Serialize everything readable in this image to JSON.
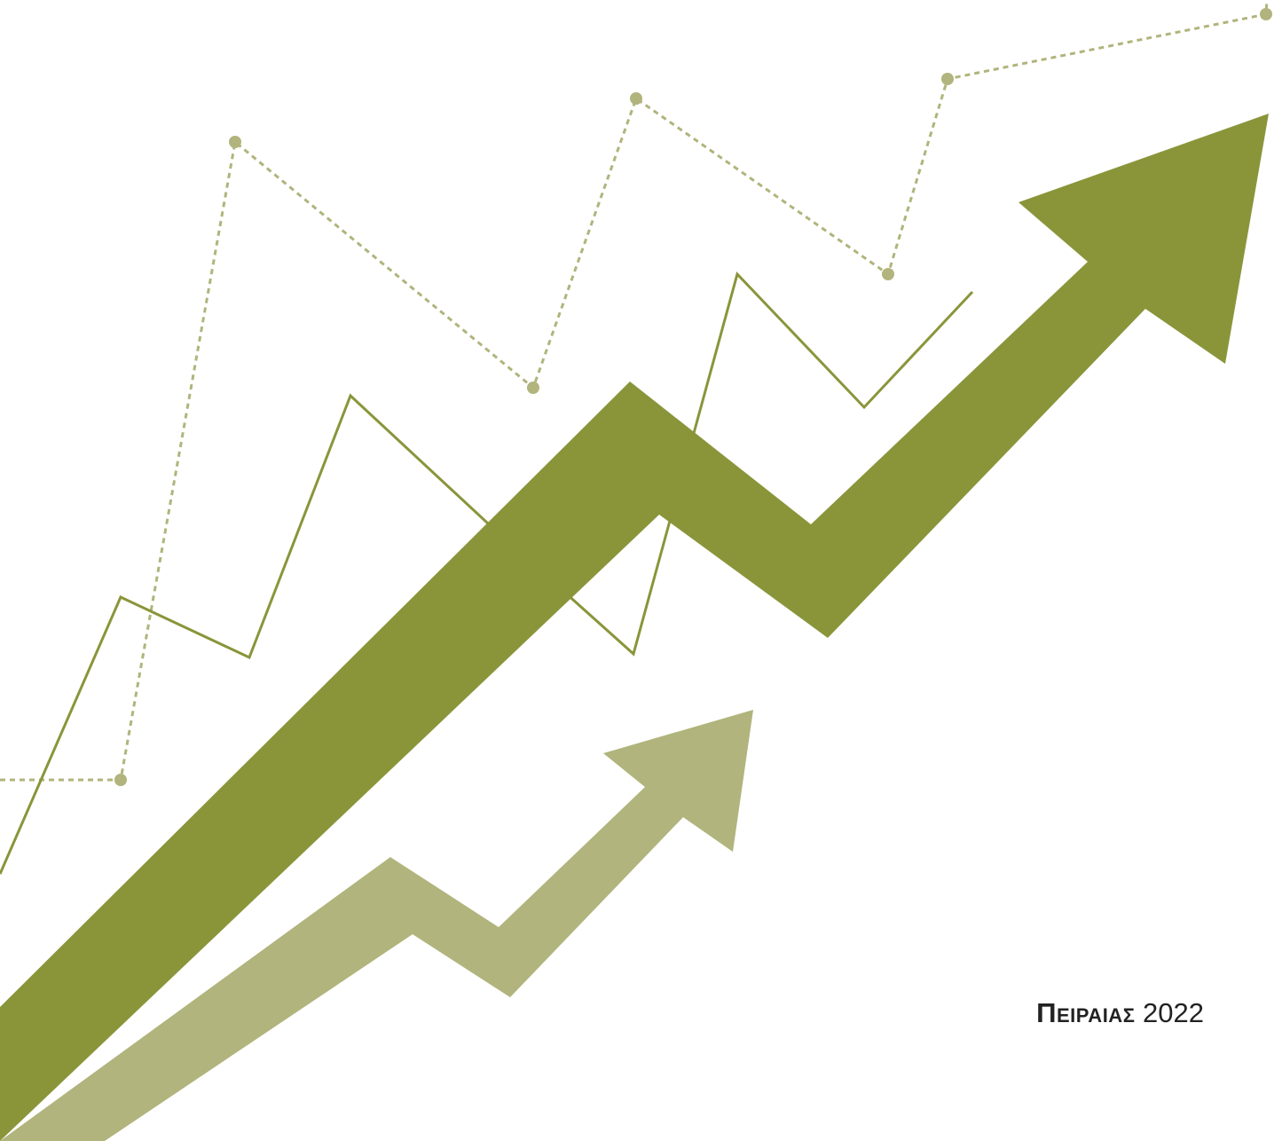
{
  "colors": {
    "background": "#ffffff",
    "primary_green": "#8a953a",
    "light_green": "#b1b47c",
    "dotted_line": "#b1b47c",
    "text": "#222222"
  },
  "footer": {
    "place": "Πειραιας",
    "year": "2022"
  }
}
